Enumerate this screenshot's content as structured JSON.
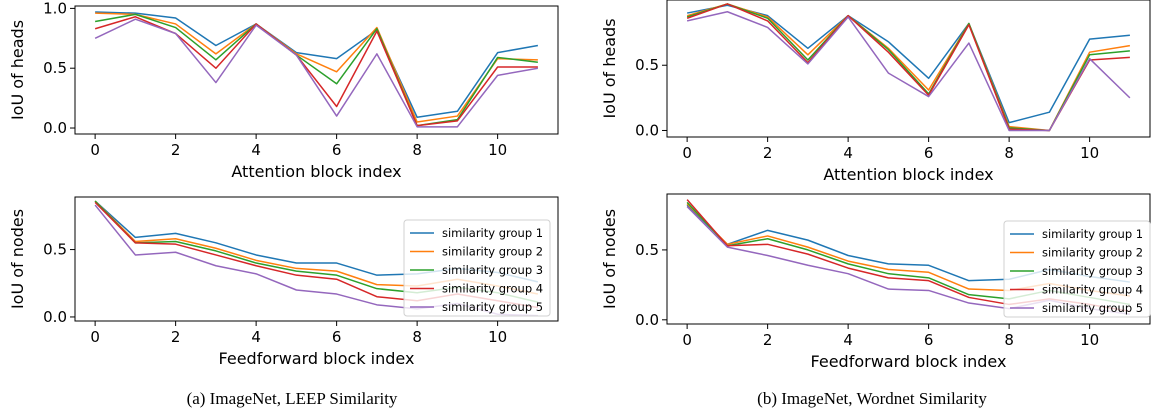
{
  "colors": [
    "#1f77b4",
    "#ff7f0e",
    "#2ca02c",
    "#d62728",
    "#9467bd"
  ],
  "captions": [
    "(a)  ImageNet, LEEP Similarity",
    "(b)  ImageNet, Wordnet Similarity"
  ],
  "chart_data": [
    {
      "type": "line",
      "title": "",
      "xlabel": "Attention block index",
      "ylabel": "IoU of heads",
      "x": [
        0,
        1,
        2,
        3,
        4,
        5,
        6,
        7,
        8,
        9,
        10,
        11
      ],
      "xticks": [
        0,
        2,
        4,
        6,
        8,
        10
      ],
      "yticks": [
        0.0,
        0.5,
        1.0
      ],
      "ytick_labels": [
        "0.0",
        "0.5",
        "1.0"
      ],
      "xlim": [
        -0.5,
        11.5
      ],
      "ylim": [
        -0.05,
        1.02
      ],
      "legend": false,
      "series": [
        {
          "values": [
            0.97,
            0.96,
            0.92,
            0.69,
            0.87,
            0.63,
            0.58,
            0.82,
            0.09,
            0.14,
            0.63,
            0.69
          ]
        },
        {
          "values": [
            0.96,
            0.95,
            0.87,
            0.62,
            0.87,
            0.62,
            0.47,
            0.84,
            0.05,
            0.1,
            0.58,
            0.57
          ]
        },
        {
          "values": [
            0.89,
            0.95,
            0.84,
            0.57,
            0.87,
            0.61,
            0.37,
            0.83,
            0.02,
            0.07,
            0.59,
            0.55
          ]
        },
        {
          "values": [
            0.83,
            0.93,
            0.79,
            0.5,
            0.87,
            0.61,
            0.18,
            0.81,
            0.02,
            0.06,
            0.51,
            0.51
          ]
        },
        {
          "values": [
            0.75,
            0.91,
            0.79,
            0.38,
            0.86,
            0.61,
            0.1,
            0.62,
            0.01,
            0.01,
            0.44,
            0.5
          ]
        }
      ]
    },
    {
      "type": "line",
      "title": "",
      "xlabel": "Feedforward block index",
      "ylabel": "IoU of nodes",
      "x": [
        0,
        1,
        2,
        3,
        4,
        5,
        6,
        7,
        8,
        9,
        10,
        11
      ],
      "xticks": [
        0,
        2,
        4,
        6,
        8,
        10
      ],
      "yticks": [
        0.0,
        0.5
      ],
      "ytick_labels": [
        "0.0",
        "0.5"
      ],
      "xlim": [
        -0.5,
        11.5
      ],
      "ylim": [
        -0.03,
        0.89
      ],
      "legend": true,
      "legend_position": "upper-right",
      "series": [
        {
          "name": "similarity group 1",
          "values": [
            0.86,
            0.59,
            0.62,
            0.55,
            0.46,
            0.4,
            0.4,
            0.31,
            0.32,
            0.36,
            0.33,
            0.26
          ]
        },
        {
          "name": "similarity group 2",
          "values": [
            0.86,
            0.56,
            0.58,
            0.51,
            0.42,
            0.36,
            0.34,
            0.24,
            0.23,
            0.28,
            0.23,
            0.17
          ]
        },
        {
          "name": "similarity group 3",
          "values": [
            0.86,
            0.55,
            0.56,
            0.49,
            0.4,
            0.34,
            0.31,
            0.21,
            0.18,
            0.22,
            0.18,
            0.11
          ]
        },
        {
          "name": "similarity group 4",
          "values": [
            0.85,
            0.55,
            0.54,
            0.46,
            0.38,
            0.31,
            0.28,
            0.15,
            0.12,
            0.17,
            0.12,
            0.07
          ]
        },
        {
          "name": "similarity group 5",
          "values": [
            0.83,
            0.46,
            0.48,
            0.38,
            0.32,
            0.2,
            0.17,
            0.09,
            0.06,
            0.1,
            0.02,
            0.01
          ]
        }
      ]
    },
    {
      "type": "line",
      "title": "",
      "xlabel": "Attention block index",
      "ylabel": "IoU of heads",
      "x": [
        0,
        1,
        2,
        3,
        4,
        5,
        6,
        7,
        8,
        9,
        10,
        11
      ],
      "xticks": [
        0,
        2,
        4,
        6,
        8,
        10
      ],
      "yticks": [
        0.0,
        0.5
      ],
      "ytick_labels": [
        "0.0",
        "0.5"
      ],
      "xlim": [
        -0.5,
        11.5
      ],
      "ylim": [
        -0.05,
        1.0
      ],
      "legend": false,
      "series": [
        {
          "values": [
            0.9,
            0.96,
            0.88,
            0.63,
            0.88,
            0.68,
            0.4,
            0.82,
            0.06,
            0.14,
            0.7,
            0.73
          ]
        },
        {
          "values": [
            0.88,
            0.97,
            0.87,
            0.58,
            0.88,
            0.63,
            0.31,
            0.82,
            0.03,
            0.0,
            0.6,
            0.65
          ]
        },
        {
          "values": [
            0.87,
            0.97,
            0.86,
            0.54,
            0.88,
            0.62,
            0.28,
            0.82,
            0.02,
            0.0,
            0.58,
            0.61
          ]
        },
        {
          "values": [
            0.86,
            0.97,
            0.84,
            0.52,
            0.88,
            0.6,
            0.27,
            0.81,
            0.01,
            0.0,
            0.54,
            0.56
          ]
        },
        {
          "values": [
            0.84,
            0.91,
            0.79,
            0.51,
            0.87,
            0.44,
            0.26,
            0.67,
            0.0,
            0.0,
            0.55,
            0.25
          ]
        }
      ]
    },
    {
      "type": "line",
      "title": "",
      "xlabel": "Feedforward block index",
      "ylabel": "IoU of nodes",
      "x": [
        0,
        1,
        2,
        3,
        4,
        5,
        6,
        7,
        8,
        9,
        10,
        11
      ],
      "xticks": [
        0,
        2,
        4,
        6,
        8,
        10
      ],
      "yticks": [
        0.0,
        0.5
      ],
      "ytick_labels": [
        "0.0",
        "0.5"
      ],
      "xlim": [
        -0.5,
        11.5
      ],
      "ylim": [
        -0.03,
        0.9
      ],
      "legend": true,
      "legend_position": "upper-right",
      "series": [
        {
          "name": "similarity group 1",
          "values": [
            0.82,
            0.54,
            0.64,
            0.57,
            0.46,
            0.4,
            0.39,
            0.28,
            0.29,
            0.36,
            0.31,
            0.27
          ]
        },
        {
          "name": "similarity group 2",
          "values": [
            0.83,
            0.54,
            0.6,
            0.52,
            0.42,
            0.36,
            0.34,
            0.22,
            0.21,
            0.26,
            0.21,
            0.17
          ]
        },
        {
          "name": "similarity group 3",
          "values": [
            0.84,
            0.53,
            0.58,
            0.5,
            0.4,
            0.33,
            0.3,
            0.18,
            0.15,
            0.21,
            0.16,
            0.11
          ]
        },
        {
          "name": "similarity group 4",
          "values": [
            0.86,
            0.53,
            0.54,
            0.47,
            0.37,
            0.3,
            0.28,
            0.16,
            0.11,
            0.15,
            0.11,
            0.06
          ]
        },
        {
          "name": "similarity group 5",
          "values": [
            0.81,
            0.52,
            0.46,
            0.39,
            0.33,
            0.22,
            0.21,
            0.12,
            0.08,
            0.14,
            0.08,
            0.04
          ]
        }
      ]
    }
  ]
}
